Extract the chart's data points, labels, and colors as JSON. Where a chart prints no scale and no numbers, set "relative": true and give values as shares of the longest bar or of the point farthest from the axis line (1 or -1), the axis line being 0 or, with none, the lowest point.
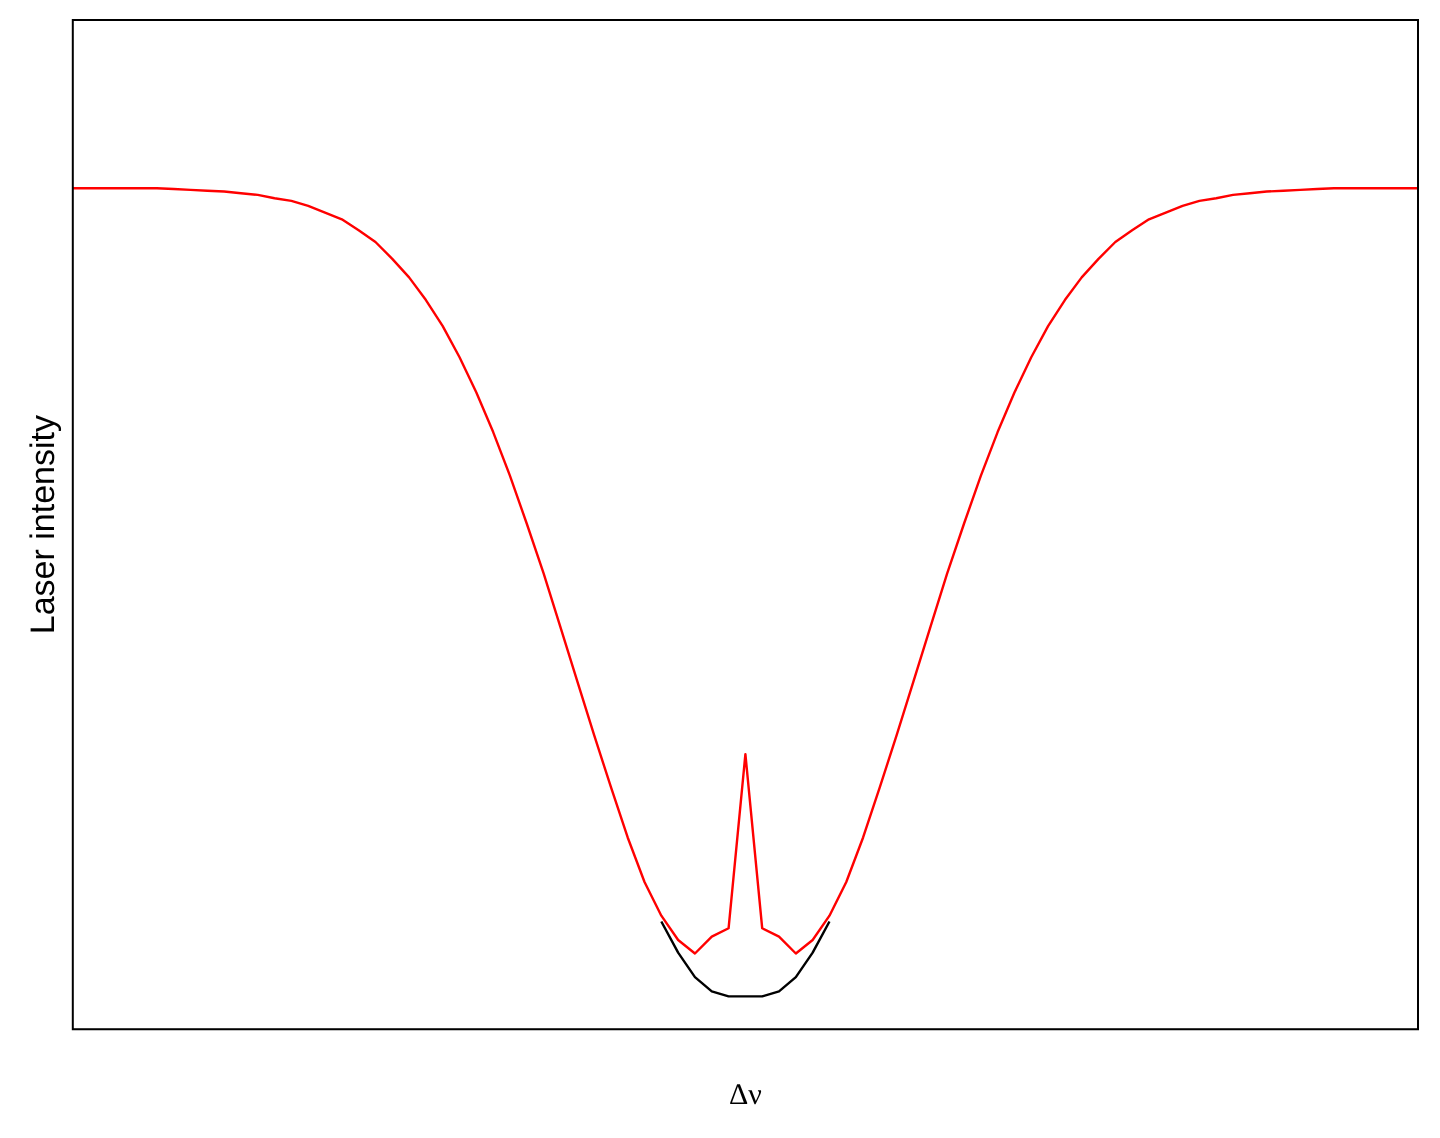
{
  "chart_data": {
    "type": "line",
    "relative": true,
    "xlabel": "Δν",
    "ylabel": "Laser intensity",
    "legend": false,
    "grid": false,
    "marker": "none",
    "categories": [
      null,
      null,
      null,
      null,
      null,
      null,
      null,
      null,
      null,
      null,
      null,
      null,
      null,
      null,
      null,
      null,
      null,
      null,
      null,
      null,
      null,
      null,
      null,
      null,
      null,
      null,
      null,
      null,
      null,
      null,
      null,
      null,
      null,
      null,
      null,
      null,
      null,
      null,
      null,
      null,
      null,
      null,
      null,
      null,
      null,
      null,
      null,
      null,
      null,
      null,
      null,
      null,
      null,
      null,
      null,
      null,
      null,
      null,
      null,
      null,
      null,
      null,
      null,
      null,
      null,
      null,
      null,
      null,
      null,
      null,
      null,
      null,
      null,
      null,
      null,
      null,
      null,
      null,
      null,
      null,
      null
    ],
    "series": [
      {
        "color": "#000000",
        "values": [
          null,
          null,
          null,
          null,
          null,
          null,
          null,
          null,
          null,
          null,
          null,
          null,
          null,
          null,
          null,
          null,
          null,
          null,
          null,
          null,
          null,
          null,
          null,
          null,
          null,
          null,
          null,
          null,
          null,
          null,
          null,
          null,
          null,
          null,
          null,
          0.128,
          0.091,
          0.062,
          0.045,
          0.039,
          0.039,
          0.039,
          0.045,
          0.062,
          0.091,
          0.128,
          null,
          null,
          null,
          null,
          null,
          null,
          null,
          null,
          null,
          null,
          null,
          null,
          null,
          null,
          null,
          null,
          null,
          null,
          null,
          null,
          null,
          null,
          null,
          null,
          null,
          null,
          null,
          null,
          null,
          null,
          null,
          null,
          null,
          null,
          null
        ]
      },
      {
        "color": "#ff0000",
        "values": [
          1,
          1,
          1,
          1,
          1,
          1,
          0.999,
          0.998,
          0.997,
          0.996,
          0.994,
          0.992,
          0.988,
          0.985,
          0.979,
          0.971,
          0.963,
          0.95,
          0.936,
          0.916,
          0.894,
          0.867,
          0.836,
          0.799,
          0.757,
          0.71,
          0.658,
          0.601,
          0.542,
          0.478,
          0.414,
          0.35,
          0.288,
          0.228,
          0.175,
          0.135,
          0.106,
          0.09,
          0.11,
          0.12,
          0.327,
          0.12,
          0.11,
          0.09,
          0.106,
          0.135,
          0.175,
          0.228,
          0.288,
          0.35,
          0.414,
          0.478,
          0.542,
          0.601,
          0.658,
          0.71,
          0.757,
          0.799,
          0.836,
          0.867,
          0.894,
          0.916,
          0.936,
          0.95,
          0.963,
          0.971,
          0.979,
          0.985,
          0.988,
          0.992,
          0.994,
          0.996,
          0.997,
          0.998,
          0.999,
          1,
          1,
          1,
          1,
          1,
          1
        ]
      }
    ]
  }
}
